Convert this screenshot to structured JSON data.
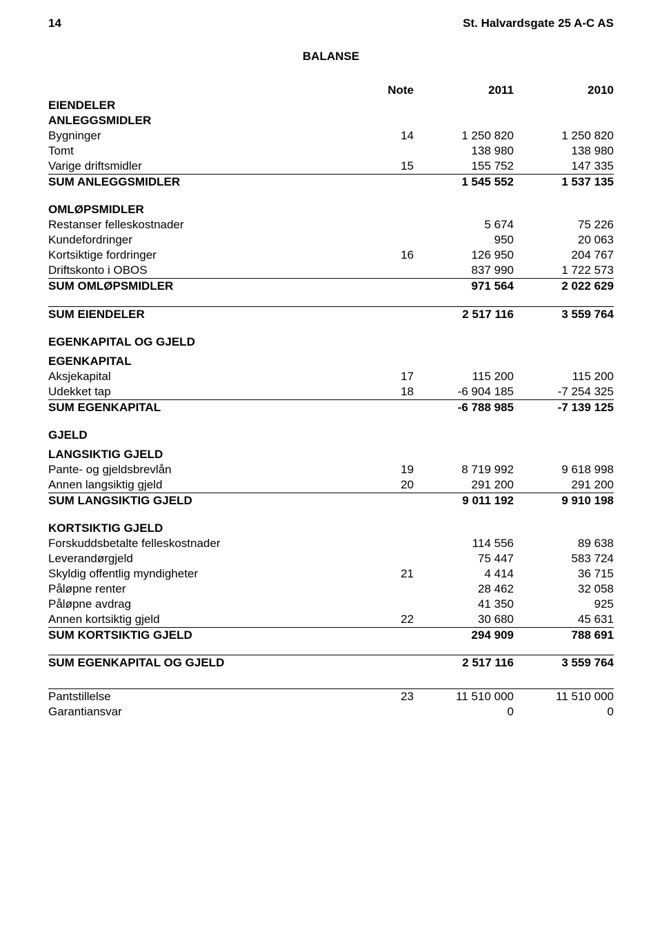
{
  "meta": {
    "page_num_left": "14",
    "company_name": "St. Halvardsgate 25 A-C AS",
    "title": "BALANSE",
    "col_header_note": "Note",
    "col_header_2011": "2011",
    "col_header_2010": "2010"
  },
  "assets": {
    "header": "EIENDELER",
    "fixed": {
      "header": "ANLEGGSMIDLER",
      "rows": [
        {
          "label": "Bygninger",
          "note": "14",
          "v2011": "1 250 820",
          "v2010": "1 250 820"
        },
        {
          "label": "Tomt",
          "note": "",
          "v2011": "138 980",
          "v2010": "138 980"
        },
        {
          "label": "Varige driftsmidler",
          "note": "15",
          "v2011": "155 752",
          "v2010": "147 335"
        }
      ],
      "sum": {
        "label": "SUM ANLEGGSMIDLER",
        "v2011": "1 545 552",
        "v2010": "1 537 135"
      }
    },
    "current": {
      "header": "OMLØPSMIDLER",
      "rows": [
        {
          "label": "Restanser felleskostnader",
          "note": "",
          "v2011": "5 674",
          "v2010": "75 226"
        },
        {
          "label": "Kundefordringer",
          "note": "",
          "v2011": "950",
          "v2010": "20 063"
        },
        {
          "label": "Kortsiktige fordringer",
          "note": "16",
          "v2011": "126 950",
          "v2010": "204 767"
        },
        {
          "label": "Driftskonto i OBOS",
          "note": "",
          "v2011": "837 990",
          "v2010": "1 722 573"
        }
      ],
      "sum": {
        "label": "SUM OMLØPSMIDLER",
        "v2011": "971 564",
        "v2010": "2 022 629"
      }
    },
    "total": {
      "label": "SUM EIENDELER",
      "v2011": "2 517 116",
      "v2010": "3 559 764"
    }
  },
  "eq_liab": {
    "header": "EGENKAPITAL OG GJELD",
    "equity": {
      "header": "EGENKAPITAL",
      "rows": [
        {
          "label": "Aksjekapital",
          "note": "17",
          "v2011": "115 200",
          "v2010": "115 200"
        },
        {
          "label": "Udekket tap",
          "note": "18",
          "v2011": "-6 904 185",
          "v2010": "-7 254 325"
        }
      ],
      "sum": {
        "label": "SUM EGENKAPITAL",
        "v2011": "-6 788 985",
        "v2010": "-7 139 125"
      }
    },
    "liab": {
      "header": "GJELD",
      "long": {
        "header": "LANGSIKTIG GJELD",
        "rows": [
          {
            "label": "Pante- og gjeldsbrevlån",
            "note": "19",
            "v2011": "8 719 992",
            "v2010": "9 618 998"
          },
          {
            "label": "Annen langsiktig gjeld",
            "note": "20",
            "v2011": "291 200",
            "v2010": "291 200"
          }
        ],
        "sum": {
          "label": "SUM LANGSIKTIG GJELD",
          "v2011": "9 011 192",
          "v2010": "9 910 198"
        }
      },
      "short": {
        "header": "KORTSIKTIG GJELD",
        "rows": [
          {
            "label": "Forskuddsbetalte felleskostnader",
            "note": "",
            "v2011": "114 556",
            "v2010": "89 638"
          },
          {
            "label": "Leverandørgjeld",
            "note": "",
            "v2011": "75 447",
            "v2010": "583 724"
          },
          {
            "label": "Skyldig offentlig myndigheter",
            "note": "21",
            "v2011": "4 414",
            "v2010": "36 715"
          },
          {
            "label": "Påløpne renter",
            "note": "",
            "v2011": "28 462",
            "v2010": "32 058"
          },
          {
            "label": "Påløpne avdrag",
            "note": "",
            "v2011": "41 350",
            "v2010": "925"
          },
          {
            "label": "Annen kortsiktig gjeld",
            "note": "22",
            "v2011": "30 680",
            "v2010": "45 631"
          }
        ],
        "sum": {
          "label": "SUM KORTSIKTIG GJELD",
          "v2011": "294 909",
          "v2010": "788 691"
        }
      }
    },
    "total": {
      "label": "SUM EGENKAPITAL OG GJELD",
      "v2011": "2 517 116",
      "v2010": "3 559 764"
    }
  },
  "footer": {
    "rows": [
      {
        "label": "Pantstillelse",
        "note": "23",
        "v2011": "11 510 000",
        "v2010": "11 510 000"
      },
      {
        "label": "Garantiansvar",
        "note": "",
        "v2011": "0",
        "v2010": "0"
      }
    ]
  }
}
